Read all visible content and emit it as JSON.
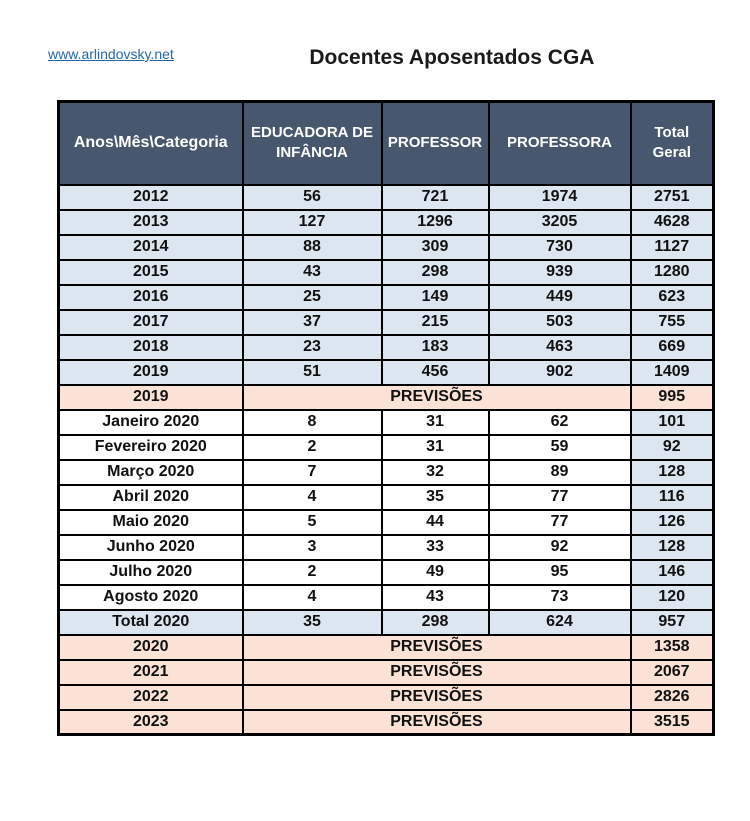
{
  "page": {
    "link_text": "www.arlindovsky.net",
    "title": "Docentes Aposentados CGA"
  },
  "colors": {
    "header_bg": "#47586E",
    "header_text": "#FFFFFF",
    "blue_row": "#DCE6F1",
    "peach_row": "#FBE2D5",
    "white_row": "#FFFFFF",
    "border": "#000000",
    "link": "#2467AD"
  },
  "chart_data": {
    "type": "table",
    "title": "Docentes Aposentados CGA",
    "columns": [
      "Anos\\Mês\\Categoria",
      "EDUCADORA DE INFÂNCIA",
      "PROFESSOR",
      "PROFESSORA",
      "Total Geral"
    ],
    "rows": [
      {
        "label": "2012",
        "values": [
          56,
          721,
          1974
        ],
        "total": 2751,
        "style": "blue"
      },
      {
        "label": "2013",
        "values": [
          127,
          1296,
          3205
        ],
        "total": 4628,
        "style": "blue"
      },
      {
        "label": "2014",
        "values": [
          88,
          309,
          730
        ],
        "total": 1127,
        "style": "blue"
      },
      {
        "label": "2015",
        "values": [
          43,
          298,
          939
        ],
        "total": 1280,
        "style": "blue"
      },
      {
        "label": "2016",
        "values": [
          25,
          149,
          449
        ],
        "total": 623,
        "style": "blue"
      },
      {
        "label": "2017",
        "values": [
          37,
          215,
          503
        ],
        "total": 755,
        "style": "blue"
      },
      {
        "label": "2018",
        "values": [
          23,
          183,
          463
        ],
        "total": 669,
        "style": "blue"
      },
      {
        "label": "2019",
        "values": [
          51,
          456,
          902
        ],
        "total": 1409,
        "style": "blue"
      },
      {
        "label": "2019",
        "merged": "PREVISÕES",
        "total": 995,
        "style": "peach"
      },
      {
        "label": "Janeiro 2020",
        "values": [
          8,
          31,
          62
        ],
        "total": 101,
        "style": "white"
      },
      {
        "label": "Fevereiro 2020",
        "values": [
          2,
          31,
          59
        ],
        "total": 92,
        "style": "white"
      },
      {
        "label": "Março 2020",
        "values": [
          7,
          32,
          89
        ],
        "total": 128,
        "style": "white"
      },
      {
        "label": "Abril 2020",
        "values": [
          4,
          35,
          77
        ],
        "total": 116,
        "style": "white"
      },
      {
        "label": "Maio 2020",
        "values": [
          5,
          44,
          77
        ],
        "total": 126,
        "style": "white"
      },
      {
        "label": "Junho 2020",
        "values": [
          3,
          33,
          92
        ],
        "total": 128,
        "style": "white"
      },
      {
        "label": "Julho 2020",
        "values": [
          2,
          49,
          95
        ],
        "total": 146,
        "style": "white"
      },
      {
        "label": "Agosto 2020",
        "values": [
          4,
          43,
          73
        ],
        "total": 120,
        "style": "white"
      },
      {
        "label": "Total 2020",
        "values": [
          35,
          298,
          624
        ],
        "total": 957,
        "style": "blue"
      },
      {
        "label": "2020",
        "merged": "PREVISÕES",
        "total": 1358,
        "style": "peach"
      },
      {
        "label": "2021",
        "merged": "PREVISÕES",
        "total": 2067,
        "style": "peach"
      },
      {
        "label": "2022",
        "merged": "PREVISÕES",
        "total": 2826,
        "style": "peach"
      },
      {
        "label": "2023",
        "merged": "PREVISÕES",
        "total": 3515,
        "style": "peach"
      }
    ]
  }
}
